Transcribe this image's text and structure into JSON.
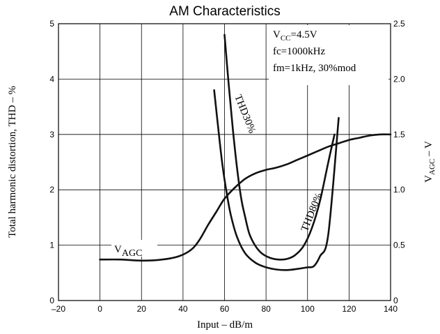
{
  "chart_data": {
    "type": "line",
    "title": "AM Characteristics",
    "xlabel": "Input  –  dB/m",
    "ylabel_left": "Total harmonic distortion, THD  –  %",
    "ylabel_right": {
      "main": "V",
      "sub": "AGC",
      "rest": "  –  V"
    },
    "xlim": [
      -20,
      140
    ],
    "ylim_left": [
      0,
      5
    ],
    "ylim_right": [
      0,
      2.5
    ],
    "grid": true,
    "x_ticks": [
      "–20",
      "0",
      "20",
      "40",
      "60",
      "80",
      "100",
      "120",
      "140"
    ],
    "y_left_ticks": [
      "0",
      "1",
      "2",
      "3",
      "4",
      "5"
    ],
    "y_right_ticks": [
      "0",
      "0.5",
      "1.0",
      "1.5",
      "2.0",
      "2.5"
    ],
    "conditions": {
      "vcc": {
        "main": "V",
        "sub": "CC",
        "rest": "=4.5V"
      },
      "fc": "fc=1000kHz",
      "fm": "fm=1kHz, 30%mod"
    },
    "series": [
      {
        "name": "THD30%",
        "axis": "left",
        "x": [
          60,
          62,
          64,
          66,
          68,
          70,
          72,
          75,
          78,
          82,
          86,
          90,
          94,
          98,
          102,
          106,
          110,
          113
        ],
        "y": [
          4.8,
          3.9,
          3.1,
          2.4,
          1.85,
          1.5,
          1.2,
          0.98,
          0.85,
          0.77,
          0.74,
          0.75,
          0.82,
          0.98,
          1.3,
          1.8,
          2.5,
          3.0
        ]
      },
      {
        "name": "THD80%",
        "axis": "left",
        "x": [
          55,
          57,
          59,
          61,
          63,
          66,
          70,
          75,
          80,
          85,
          90,
          95,
          100,
          103,
          106,
          110,
          115
        ],
        "y": [
          3.8,
          3.1,
          2.45,
          1.95,
          1.55,
          1.15,
          0.85,
          0.68,
          0.6,
          0.56,
          0.55,
          0.57,
          0.6,
          0.62,
          0.8,
          1.2,
          3.3
        ]
      },
      {
        "name": "VAGC",
        "label": {
          "main": "V",
          "sub": "AGC"
        },
        "axis": "right",
        "x": [
          0,
          10,
          20,
          30,
          38,
          44,
          48,
          52,
          56,
          60,
          65,
          70,
          75,
          80,
          85,
          90,
          95,
          100,
          105,
          110,
          115,
          120,
          125,
          130,
          135,
          140
        ],
        "y": [
          0.37,
          0.37,
          0.36,
          0.37,
          0.4,
          0.46,
          0.55,
          0.68,
          0.8,
          0.92,
          1.02,
          1.1,
          1.15,
          1.18,
          1.2,
          1.23,
          1.27,
          1.31,
          1.35,
          1.39,
          1.42,
          1.45,
          1.47,
          1.49,
          1.5,
          1.5
        ]
      }
    ],
    "curve_labels": [
      "THD30%",
      "THD80%"
    ]
  }
}
